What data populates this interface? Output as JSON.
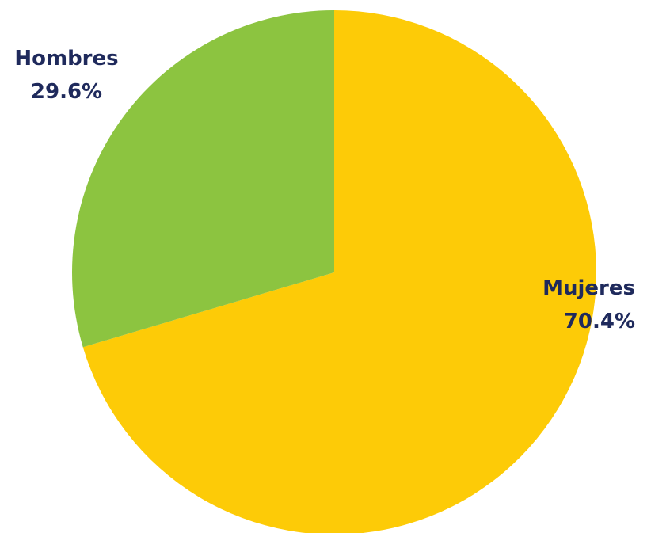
{
  "chart_data": {
    "type": "pie",
    "title": "",
    "categories": [
      "Mujeres",
      "Hombres"
    ],
    "values": [
      70.4,
      29.6
    ],
    "unit": "%",
    "data_labels": [
      "70.4%",
      "29.6%"
    ],
    "colors": [
      "#FDCB07",
      "#8CC440"
    ],
    "label_color": "#1F2A5C",
    "start_angle": "12 o'clock",
    "direction": "clockwise",
    "legend": "none"
  }
}
